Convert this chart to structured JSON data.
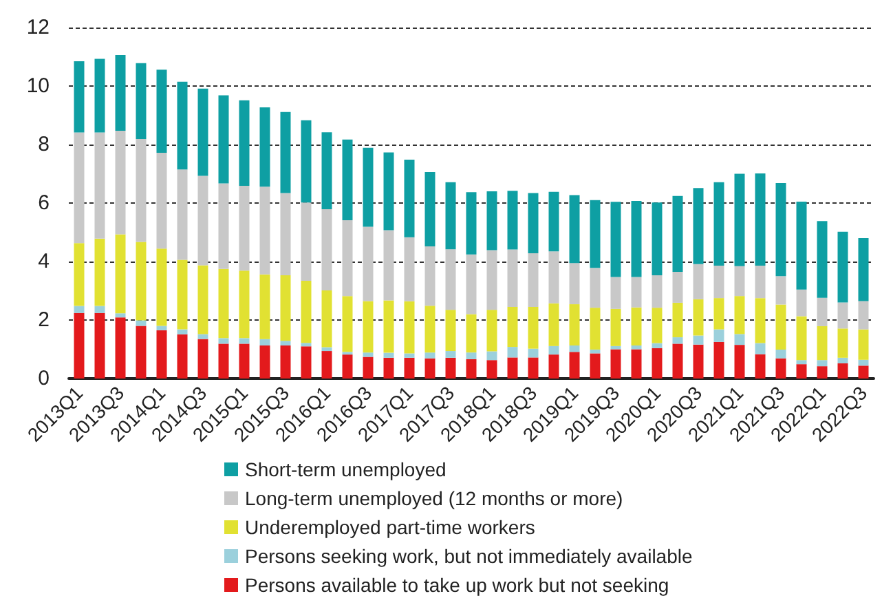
{
  "chart_data": {
    "type": "bar",
    "stacked": true,
    "grid": "y",
    "legend": "bottom",
    "categories": [
      "2013Q1",
      null,
      "2013Q3",
      null,
      "2014Q1",
      null,
      "2014Q3",
      null,
      "2015Q1",
      null,
      "2015Q3",
      null,
      "2016Q1",
      null,
      "2016Q3",
      null,
      "2017Q1",
      null,
      "2017Q3",
      null,
      "2018Q1",
      null,
      "2018Q3",
      null,
      "2019Q1",
      null,
      "2019Q3",
      null,
      "2020Q1",
      null,
      "2020Q3",
      null,
      "2021Q1",
      null,
      "2021Q3",
      null,
      "2022Q1",
      null,
      "2022Q3"
    ],
    "ylim": [
      0,
      12
    ],
    "yticks": [
      0,
      2,
      4,
      6,
      8,
      10,
      12
    ],
    "series": [
      {
        "name": "Persons available to take up work but not seeking",
        "color": "#e31a1c",
        "values": [
          2.24,
          2.24,
          2.09,
          1.8,
          1.65,
          1.51,
          1.35,
          1.19,
          1.19,
          1.13,
          1.13,
          1.1,
          0.94,
          0.82,
          0.74,
          0.71,
          0.71,
          0.69,
          0.71,
          0.66,
          0.63,
          0.72,
          0.72,
          0.82,
          0.91,
          0.86,
          1.0,
          1.0,
          1.04,
          1.19,
          1.16,
          1.25,
          1.15,
          0.83,
          0.69,
          0.49,
          0.42,
          0.52,
          0.44
        ]
      },
      {
        "name": "Persons seeking work, but not immediately available",
        "color": "#9bd0dc",
        "values": [
          0.24,
          0.24,
          0.14,
          0.19,
          0.15,
          0.17,
          0.17,
          0.19,
          0.19,
          0.22,
          0.16,
          0.12,
          0.13,
          0.09,
          0.15,
          0.17,
          0.15,
          0.2,
          0.23,
          0.23,
          0.3,
          0.36,
          0.3,
          0.29,
          0.22,
          0.13,
          0.11,
          0.13,
          0.17,
          0.22,
          0.31,
          0.43,
          0.37,
          0.38,
          0.3,
          0.14,
          0.21,
          0.19,
          0.2
        ]
      },
      {
        "name": "Underemployed part-time workers",
        "color": "#e1e132",
        "values": [
          2.15,
          2.3,
          2.7,
          2.68,
          2.64,
          2.38,
          2.35,
          2.37,
          2.31,
          2.21,
          2.24,
          2.12,
          1.94,
          1.91,
          1.76,
          1.79,
          1.78,
          1.6,
          1.41,
          1.31,
          1.42,
          1.37,
          1.43,
          1.46,
          1.41,
          1.43,
          1.27,
          1.3,
          1.21,
          1.18,
          1.24,
          1.07,
          1.3,
          1.54,
          1.54,
          1.5,
          1.16,
          1.0,
          1.04
        ]
      },
      {
        "name": "Long-term unemployed (12 months or more)",
        "color": "#c8c8c8",
        "values": [
          3.78,
          3.63,
          3.54,
          3.52,
          3.28,
          3.09,
          3.06,
          2.92,
          2.9,
          3.0,
          2.81,
          2.68,
          2.78,
          2.59,
          2.54,
          2.4,
          2.19,
          2.03,
          2.07,
          2.04,
          2.04,
          1.96,
          1.83,
          1.78,
          1.41,
          1.36,
          1.09,
          1.04,
          1.11,
          1.06,
          1.2,
          1.11,
          1.02,
          1.11,
          0.97,
          0.91,
          0.97,
          0.89,
          0.97
        ]
      },
      {
        "name": "Short-term unemployed",
        "color": "#0e9fa3",
        "values": [
          2.44,
          2.52,
          2.59,
          2.59,
          2.84,
          3.0,
          2.98,
          3.01,
          2.92,
          2.71,
          2.77,
          2.81,
          2.63,
          2.76,
          2.7,
          2.66,
          2.65,
          2.54,
          2.29,
          2.13,
          2.01,
          2.01,
          2.06,
          2.03,
          2.32,
          2.32,
          2.57,
          2.6,
          2.49,
          2.59,
          2.6,
          2.85,
          3.16,
          3.15,
          3.18,
          3.01,
          2.62,
          2.42,
          2.15
        ]
      }
    ]
  }
}
